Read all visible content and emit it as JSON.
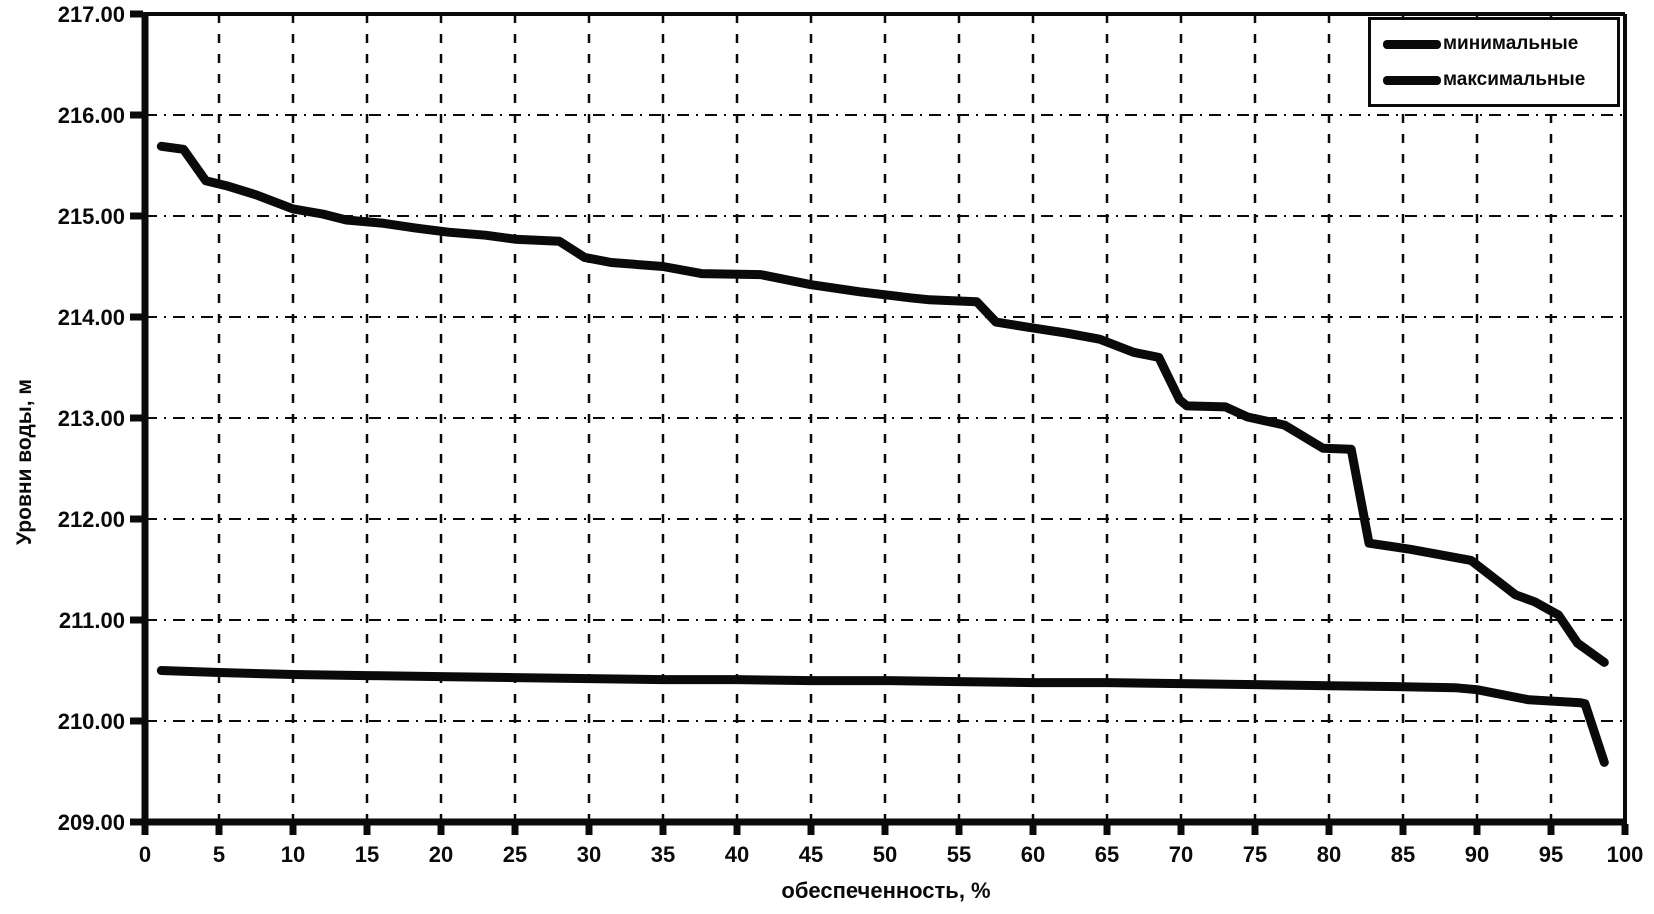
{
  "figure": {
    "background": "#ffffff",
    "ink_color": "#0a0a0a"
  },
  "chart_data": {
    "type": "line",
    "title": "",
    "xlabel": "обеспеченность, %",
    "ylabel": "Уровни воды, м",
    "xlim": [
      0,
      100
    ],
    "ylim": [
      209,
      217
    ],
    "grid": "dash-dot gridlines on both axes, every 5 % and every 1.00 m",
    "x_ticks": [
      0,
      5,
      10,
      15,
      20,
      25,
      30,
      35,
      40,
      45,
      50,
      55,
      60,
      65,
      70,
      75,
      80,
      85,
      90,
      95,
      100
    ],
    "x_tick_labels": [
      "0",
      "5",
      "10",
      "15",
      "20",
      "25",
      "30",
      "35",
      "40",
      "45",
      "50",
      "55",
      "60",
      "65",
      "70",
      "75",
      "80",
      "85",
      "90",
      "95",
      "100"
    ],
    "y_ticks": [
      209,
      210,
      211,
      212,
      213,
      214,
      215,
      216,
      217
    ],
    "y_tick_labels": [
      "209.00",
      "210.00",
      "211.00",
      "212.00",
      "213.00",
      "214.00",
      "215.00",
      "216.00",
      "217.00"
    ],
    "legend": {
      "position": "top-right",
      "entries": [
        "минимальные",
        "максимальные"
      ]
    },
    "series": [
      {
        "name": "минимальные",
        "color": "#0a0a0a",
        "points": [
          [
            1.1,
            210.5
          ],
          [
            5,
            210.48
          ],
          [
            10,
            210.46
          ],
          [
            15,
            210.45
          ],
          [
            20,
            210.44
          ],
          [
            25,
            210.43
          ],
          [
            30,
            210.42
          ],
          [
            35,
            210.41
          ],
          [
            40,
            210.41
          ],
          [
            45,
            210.4
          ],
          [
            50,
            210.4
          ],
          [
            55,
            210.39
          ],
          [
            60,
            210.38
          ],
          [
            65,
            210.38
          ],
          [
            70,
            210.37
          ],
          [
            75,
            210.36
          ],
          [
            80,
            210.35
          ],
          [
            85,
            210.34
          ],
          [
            88.5,
            210.33
          ],
          [
            90,
            210.31
          ],
          [
            93.5,
            210.21
          ],
          [
            97,
            210.18
          ],
          [
            97.3,
            210.17
          ],
          [
            98.6,
            209.59
          ]
        ]
      },
      {
        "name": "максимальные",
        "color": "#0a0a0a",
        "points": [
          [
            1.1,
            215.69
          ],
          [
            2.6,
            215.66
          ],
          [
            4.1,
            215.35
          ],
          [
            5.5,
            215.3
          ],
          [
            7.5,
            215.21
          ],
          [
            10,
            215.07
          ],
          [
            12,
            215.02
          ],
          [
            13.6,
            214.96
          ],
          [
            16,
            214.93
          ],
          [
            18.3,
            214.88
          ],
          [
            20.5,
            214.84
          ],
          [
            23,
            214.81
          ],
          [
            25,
            214.77
          ],
          [
            28,
            214.75
          ],
          [
            29.7,
            214.59
          ],
          [
            31.5,
            214.54
          ],
          [
            35,
            214.5
          ],
          [
            37.6,
            214.43
          ],
          [
            41.6,
            214.42
          ],
          [
            45,
            214.32
          ],
          [
            48.3,
            214.25
          ],
          [
            51.7,
            214.19
          ],
          [
            53,
            214.17
          ],
          [
            56.2,
            214.15
          ],
          [
            57.5,
            213.95
          ],
          [
            59.6,
            213.9
          ],
          [
            62.3,
            213.84
          ],
          [
            64.5,
            213.78
          ],
          [
            66.8,
            213.65
          ],
          [
            68.5,
            213.6
          ],
          [
            69.9,
            213.18
          ],
          [
            70.4,
            213.12
          ],
          [
            73,
            213.11
          ],
          [
            74.5,
            213.01
          ],
          [
            77,
            212.93
          ],
          [
            79.6,
            212.7
          ],
          [
            81.5,
            212.69
          ],
          [
            82.7,
            211.76
          ],
          [
            85.5,
            211.7
          ],
          [
            89.6,
            211.59
          ],
          [
            92.6,
            211.25
          ],
          [
            93.9,
            211.18
          ],
          [
            95.5,
            211.05
          ],
          [
            96.8,
            210.77
          ],
          [
            98.6,
            210.58
          ]
        ]
      }
    ]
  }
}
